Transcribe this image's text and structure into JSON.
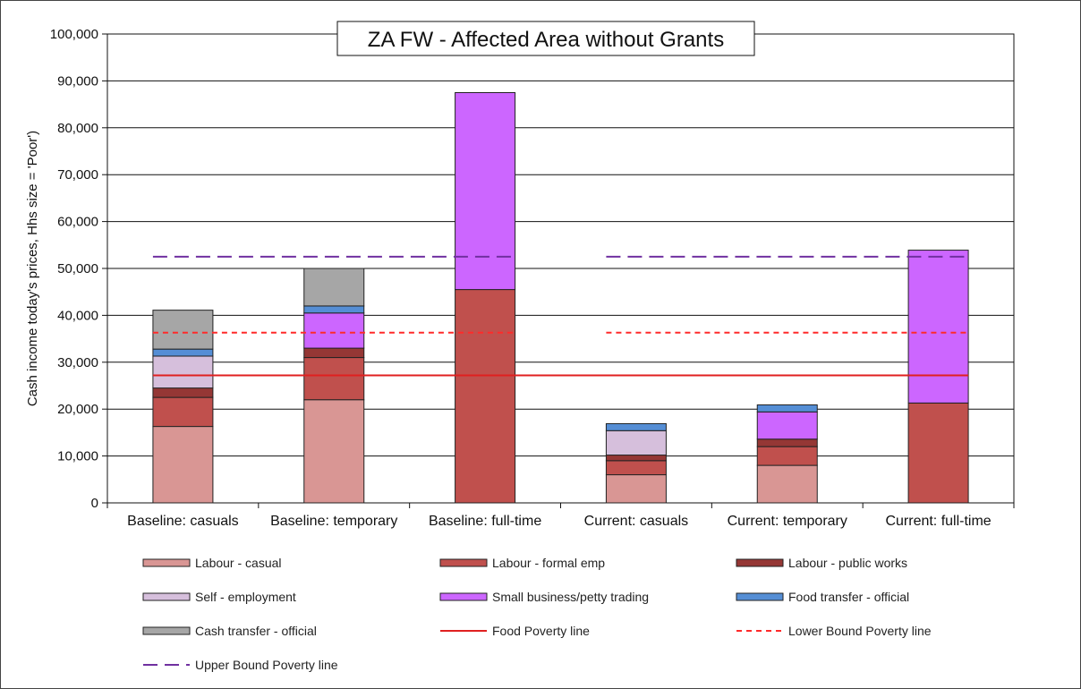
{
  "chart_data": {
    "type": "bar",
    "stacked": true,
    "title": "ZA FW - Affected Area without Grants",
    "xlabel": "",
    "ylabel": "Cash income today's prices, Hhs size = 'Poor')",
    "ylim": [
      0,
      100000
    ],
    "yticks": [
      0,
      10000,
      20000,
      30000,
      40000,
      50000,
      60000,
      70000,
      80000,
      90000,
      100000
    ],
    "ytick_labels": [
      "0",
      "10,000",
      "20,000",
      "30,000",
      "40,000",
      "50,000",
      "60,000",
      "70,000",
      "80,000",
      "90,000",
      "100,000"
    ],
    "grid": true,
    "legend_position": "bottom",
    "categories": [
      "Baseline: casuals",
      "Baseline: temporary",
      "Baseline: full-time",
      "Current: casuals",
      "Current: temporary",
      "Current: full-time"
    ],
    "series": [
      {
        "name": "Labour - casual",
        "color": "#d99694",
        "values": [
          16300,
          22000,
          0,
          6000,
          8000,
          0
        ]
      },
      {
        "name": "Labour - formal emp",
        "color": "#c0504d",
        "values": [
          6200,
          9000,
          45500,
          3000,
          4000,
          21300
        ]
      },
      {
        "name": "Labour - public works",
        "color": "#953735",
        "values": [
          2000,
          2000,
          0,
          1200,
          1600,
          0
        ]
      },
      {
        "name": "Self - employment",
        "color": "#d6bfdc",
        "values": [
          6800,
          0,
          0,
          5200,
          0,
          0
        ]
      },
      {
        "name": "Small business/petty trading",
        "color": "#cc66ff",
        "values": [
          0,
          7500,
          42000,
          0,
          5800,
          32600
        ]
      },
      {
        "name": "Food transfer - official",
        "color": "#558ed5",
        "values": [
          1500,
          1500,
          0,
          1500,
          1500,
          0
        ]
      },
      {
        "name": "Cash transfer - official",
        "color": "#a6a6a6",
        "values": [
          8300,
          8000,
          0,
          0,
          0,
          0
        ]
      }
    ],
    "lines": [
      {
        "name": "Food Poverty line",
        "color": "#e02020",
        "style": "solid",
        "segments": [
          {
            "from": "Baseline: casuals",
            "to": "Current: full-time",
            "value": 27200
          }
        ]
      },
      {
        "name": "Lower Bound Poverty line",
        "color": "#ff2a2a",
        "style": "dashed",
        "segments": [
          {
            "from": "Baseline: casuals",
            "to": "Baseline: full-time",
            "value": 36300
          },
          {
            "from": "Current: casuals",
            "to": "Current: full-time",
            "value": 36300
          }
        ]
      },
      {
        "name": "Upper Bound Poverty line",
        "color": "#7030a0",
        "style": "long-dash",
        "segments": [
          {
            "from": "Baseline: casuals",
            "to": "Baseline: full-time",
            "value": 52500
          },
          {
            "from": "Current: casuals",
            "to": "Current: full-time",
            "value": 52500
          }
        ]
      }
    ]
  }
}
